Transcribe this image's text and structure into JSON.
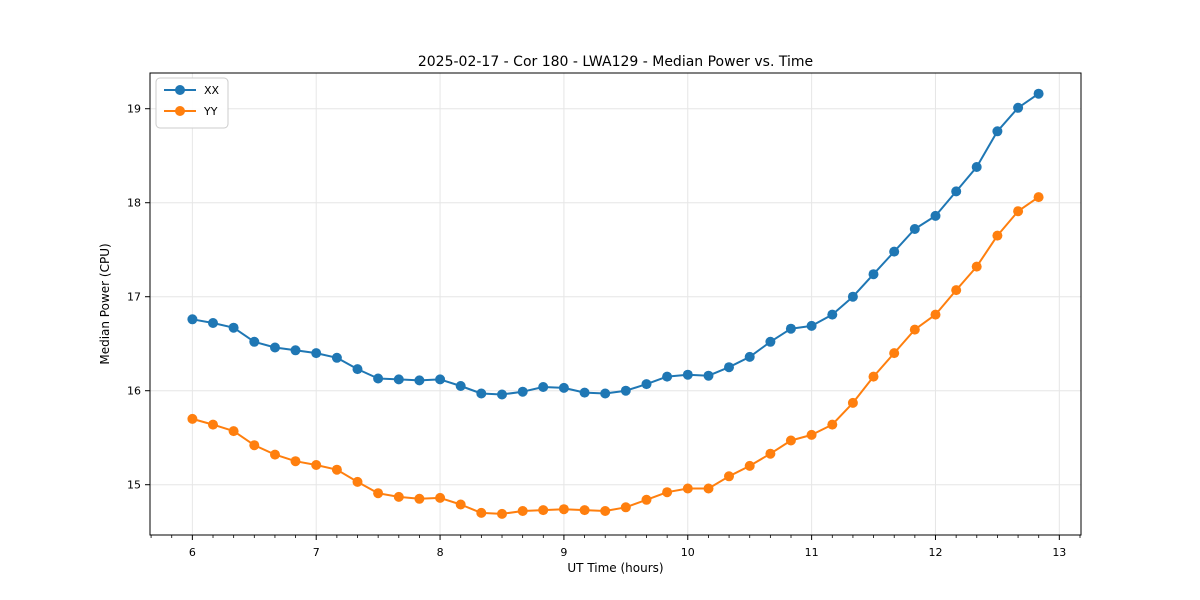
{
  "chart_data": {
    "type": "line",
    "title": "2025-02-17 - Cor 180 - LWA129 - Median Power vs. Time",
    "xlabel": "UT Time (hours)",
    "ylabel": "Median Power (CPU)",
    "xlim": [
      5.658,
      13.175
    ],
    "ylim": [
      14.465,
      19.38
    ],
    "xticks": [
      6,
      7,
      8,
      9,
      10,
      11,
      12,
      13
    ],
    "yticks": [
      15,
      16,
      17,
      18,
      19
    ],
    "x_minor_step": 0.16667,
    "grid": true,
    "legend_position": "upper left",
    "background_color": "#ffffff",
    "grid_color": "#e6e6e6",
    "spine_color": "#000000",
    "x": [
      6.0,
      6.167,
      6.333,
      6.5,
      6.667,
      6.833,
      7.0,
      7.167,
      7.333,
      7.5,
      7.667,
      7.833,
      8.0,
      8.167,
      8.333,
      8.5,
      8.667,
      8.833,
      9.0,
      9.167,
      9.333,
      9.5,
      9.667,
      9.833,
      10.0,
      10.167,
      10.333,
      10.5,
      10.667,
      10.833,
      11.0,
      11.167,
      11.333,
      11.5,
      11.667,
      11.833,
      12.0,
      12.167,
      12.333,
      12.5,
      12.667,
      12.833
    ],
    "series": [
      {
        "name": "XX",
        "color": "#1f77b4",
        "values": [
          16.76,
          16.72,
          16.67,
          16.52,
          16.46,
          16.43,
          16.4,
          16.35,
          16.23,
          16.13,
          16.12,
          16.11,
          16.12,
          16.05,
          15.97,
          15.96,
          15.99,
          16.04,
          16.03,
          15.98,
          15.97,
          16.0,
          16.07,
          16.15,
          16.17,
          16.16,
          16.25,
          16.36,
          16.52,
          16.66,
          16.69,
          16.81,
          17.0,
          17.24,
          17.48,
          17.72,
          17.86,
          18.12,
          18.38,
          18.76,
          19.01,
          19.16
        ]
      },
      {
        "name": "YY",
        "color": "#ff7f0e",
        "values": [
          15.7,
          15.64,
          15.57,
          15.42,
          15.32,
          15.25,
          15.21,
          15.16,
          15.03,
          14.91,
          14.87,
          14.85,
          14.86,
          14.79,
          14.7,
          14.69,
          14.72,
          14.73,
          14.74,
          14.73,
          14.72,
          14.76,
          14.84,
          14.92,
          14.96,
          14.96,
          15.09,
          15.2,
          15.33,
          15.47,
          15.53,
          15.64,
          15.87,
          16.15,
          16.4,
          16.65,
          16.81,
          17.07,
          17.32,
          17.65,
          17.91,
          18.06
        ]
      }
    ]
  }
}
